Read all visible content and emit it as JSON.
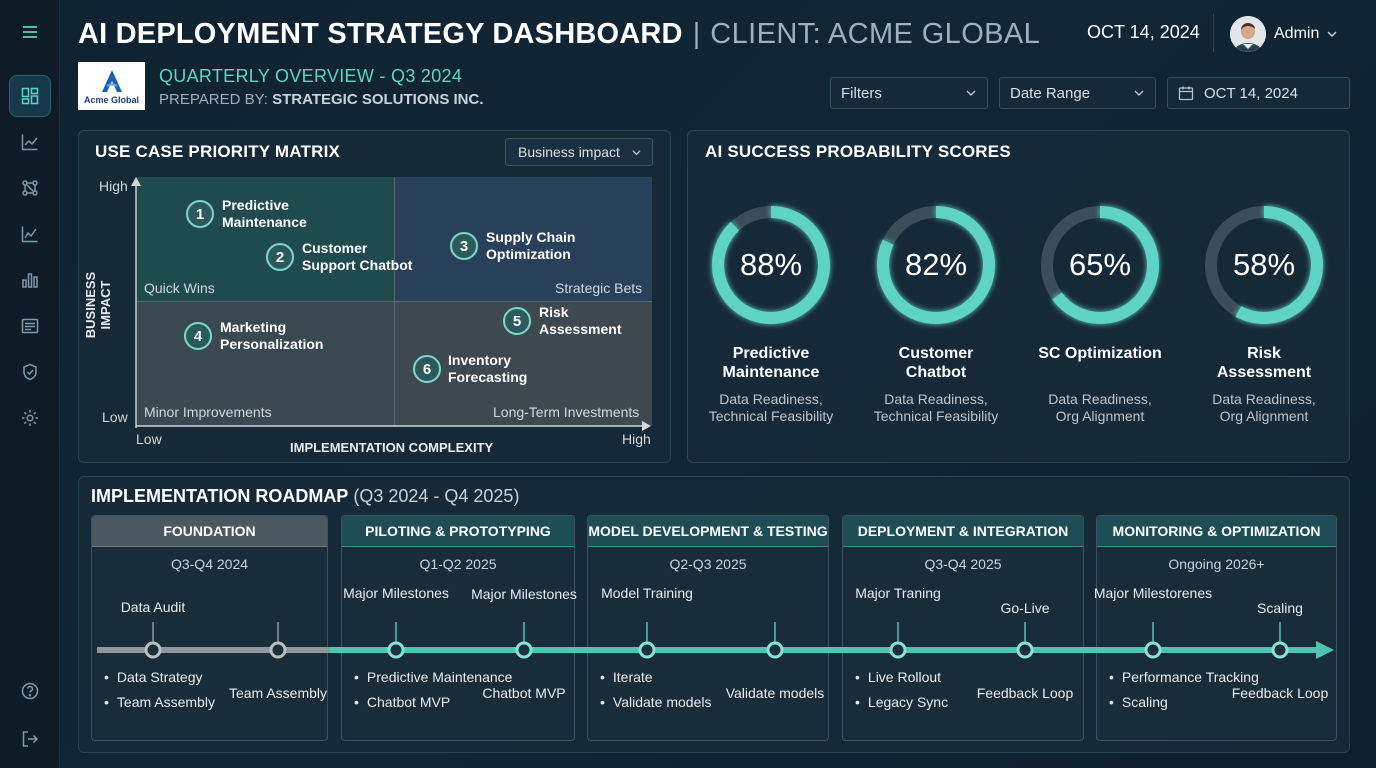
{
  "header": {
    "title": "AI DEPLOYMENT STRATEGY DASHBOARD",
    "separator": "|",
    "client": "CLIENT: ACME GLOBAL",
    "date": "OCT 14, 2024",
    "user": "Admin",
    "logo_text": "Acme Global",
    "subtitle": "QUARTERLY OVERVIEW - Q3 2024",
    "prepared_prefix": "PREPARED BY:",
    "prepared_by": "STRATEGIC SOLUTIONS INC."
  },
  "controls": {
    "filters": "Filters",
    "date_range": "Date Range",
    "date": "OCT 14, 2024"
  },
  "matrix": {
    "title": "USE CASE PRIORITY MATRIX",
    "dropdown": "Business impact",
    "y_axis_title": "BUSINESS IMPACT",
    "x_axis_title": "IMPLEMENTATION COMPLEXITY",
    "y_high": "High",
    "y_low": "Low",
    "x_low": "Low",
    "x_high": "High",
    "quadrants": {
      "top_left": "Quick Wins",
      "top_right": "Strategic Bets",
      "bottom_left": "Minor Improvements",
      "bottom_right": "Long-Term Investments"
    },
    "items": [
      {
        "num": "1",
        "line1": "Predictive",
        "line2": "Maintenance"
      },
      {
        "num": "2",
        "line1": "Customer",
        "line2": "Support Chatbot"
      },
      {
        "num": "3",
        "line1": "Supply Chain",
        "line2": "Optimization"
      },
      {
        "num": "4",
        "line1": "Marketing",
        "line2": "Personalization"
      },
      {
        "num": "5",
        "line1": "Risk",
        "line2": "Assessment"
      },
      {
        "num": "6",
        "line1": "Inventory",
        "line2": "Forecasting"
      }
    ]
  },
  "scores": {
    "title": "AI SUCCESS PROBABILITY SCORES",
    "items": [
      {
        "value": 88,
        "label": "88%",
        "name1": "Predictive",
        "name2": "Maintenance",
        "sub1": "Data Readiness,",
        "sub2": "Technical Feasibility"
      },
      {
        "value": 82,
        "label": "82%",
        "name1": "Customer",
        "name2": "Chatbot",
        "sub1": "Data Readiness,",
        "sub2": "Technical Feasibility"
      },
      {
        "value": 65,
        "label": "65%",
        "name1": "SC Optimization",
        "name2": "",
        "sub1": "Data Readiness,",
        "sub2": "Org Alignment"
      },
      {
        "value": 58,
        "label": "58%",
        "name1": "Risk",
        "name2": "Assessment",
        "sub1": "Data Readiness,",
        "sub2": "Org Alignment"
      }
    ]
  },
  "roadmap": {
    "title": "IMPLEMENTATION ROADMAP",
    "range": "(Q3 2024 - Q4 2025)",
    "phases": [
      {
        "name": "FOUNDATION",
        "period": "Q3-Q4 2024",
        "ms1": "Data Audit",
        "ms2": "",
        "bullets": [
          "Data Strategy",
          "Team Assembly"
        ],
        "below2": "Team Assembly"
      },
      {
        "name": "PILOTING & PROTOTYPING",
        "period": "Q1-Q2 2025",
        "ms1": "Major Milestones",
        "ms2": "Major Milestones",
        "bullets": [
          "Predictive Maintenance",
          "Chatbot MVP"
        ],
        "below2": "Chatbot MVP"
      },
      {
        "name": "MODEL DEVELOPMENT & TESTING",
        "period": "Q2-Q3 2025",
        "ms1": "Model Training",
        "ms2": "",
        "bullets": [
          "Iterate",
          "Validate models"
        ],
        "below2": "Validate models"
      },
      {
        "name": "DEPLOYMENT & INTEGRATION",
        "period": "Q3-Q4 2025",
        "ms1": "Major Traning",
        "ms2": "Go-Live",
        "bullets": [
          "Live Rollout",
          "Legacy Sync"
        ],
        "below2": "Feedback Loop"
      },
      {
        "name": "MONITORING & OPTIMIZATION",
        "period": "Ongoing 2026+",
        "ms1": "Major Milestorenes",
        "ms2": "Scaling",
        "bullets": [
          "Performance Tracking",
          "Scaling"
        ],
        "below2": "Feedback Loop"
      }
    ]
  },
  "colors": {
    "accent": "#5fd3c4",
    "gauge_track": "#3a4d58",
    "timeline_done": "#8d979c",
    "timeline_future": "#4fc3b4"
  }
}
